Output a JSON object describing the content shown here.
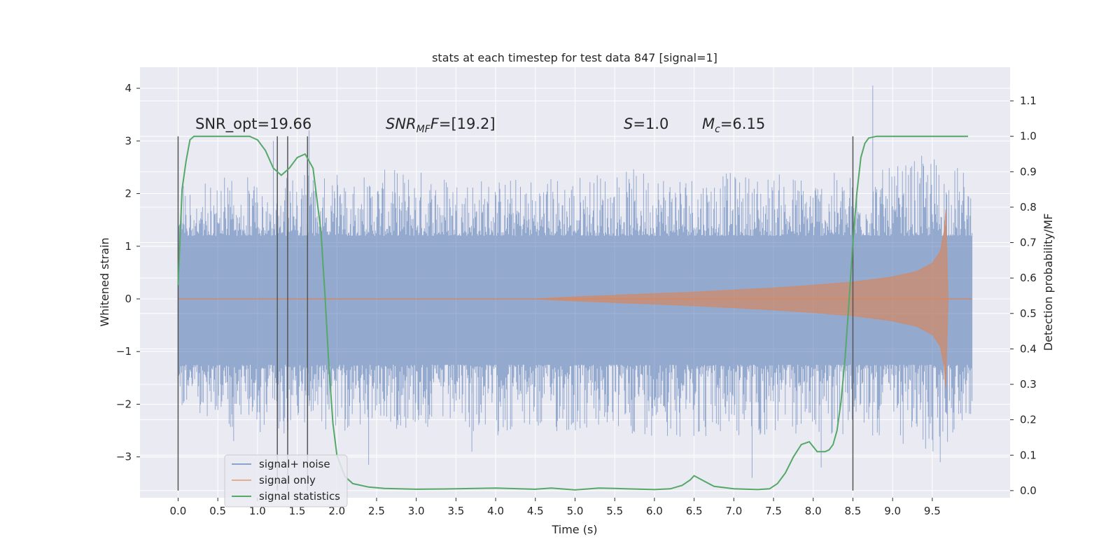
{
  "chart_data": {
    "type": "line",
    "title": "stats at each timestep for test data 847 [signal=1]",
    "xlabel": "Time (s)",
    "ylabel": "Whitened strain",
    "y2label": "Detection probability/MF",
    "xlim": [
      -0.48,
      10.48
    ],
    "ylim": [
      -3.775,
      4.4
    ],
    "y2lim": [
      -0.02,
      1.195
    ],
    "grid": true,
    "legend_position": "lower-left",
    "colors": {
      "background": "#eaeaf2",
      "grid": "#ffffff",
      "noise": "#4c72b0",
      "signal": "#dd8452",
      "stats": "#55a868",
      "vlines": "#555555",
      "text": "#262626"
    },
    "x_ticks": [
      0.0,
      0.5,
      1.0,
      1.5,
      2.0,
      2.5,
      3.0,
      3.5,
      4.0,
      4.5,
      5.0,
      5.5,
      6.0,
      6.5,
      7.0,
      7.5,
      8.0,
      8.5,
      9.0,
      9.5
    ],
    "x_tick_labels": [
      "0.0",
      "0.5",
      "1.0",
      "1.5",
      "2.0",
      "2.5",
      "3.0",
      "3.5",
      "4.0",
      "4.5",
      "5.0",
      "5.5",
      "6.0",
      "6.5",
      "7.0",
      "7.5",
      "8.0",
      "8.5",
      "9.0",
      "9.5"
    ],
    "y_ticks": [
      -3,
      -2,
      -1,
      0,
      1,
      2,
      3,
      4
    ],
    "y_tick_labels": [
      "−3",
      "−2",
      "−1",
      "0",
      "1",
      "2",
      "3",
      "4"
    ],
    "y2_ticks": [
      0.0,
      0.1,
      0.2,
      0.3,
      0.4,
      0.5,
      0.6,
      0.7,
      0.8,
      0.9,
      1.0,
      1.1
    ],
    "y2_tick_labels": [
      "0.0",
      "0.1",
      "0.2",
      "0.3",
      "0.4",
      "0.5",
      "0.6",
      "0.7",
      "0.8",
      "0.9",
      "1.0",
      "1.1"
    ],
    "annotations": {
      "snr_opt": "SNR_opt=19.66",
      "snr_mf_main": "SNR",
      "snr_mf_sub": "MF",
      "snr_mf_value": "=[19.2]",
      "s_main": "S",
      "s_value": "=1.0",
      "mc_main": "M",
      "mc_sub": "c",
      "mc_value": "=6.15"
    },
    "vertical_lines": {
      "x": [
        0.0,
        1.25,
        1.38,
        1.63,
        8.5
      ],
      "y_range_right_axis": [
        0.0,
        1.0
      ]
    },
    "series": [
      {
        "name": "signal+ noise",
        "color": "#4c72b0",
        "description": "whitened noise, amplitude range",
        "x_range": [
          0.0,
          10.0
        ],
        "envelope": {
          "x": [
            0.0,
            1.0,
            2.0,
            3.0,
            4.0,
            5.0,
            6.0,
            7.0,
            8.0,
            8.5,
            9.0,
            9.5,
            10.0
          ],
          "upper": [
            2.4,
            2.3,
            2.4,
            2.5,
            2.3,
            2.4,
            2.5,
            2.4,
            2.4,
            2.4,
            2.5,
            2.8,
            2.4
          ],
          "lower": [
            -2.2,
            -2.6,
            -2.5,
            -2.5,
            -2.6,
            -2.6,
            -2.6,
            -2.7,
            -2.6,
            -2.6,
            -2.7,
            -3.1,
            -2.2
          ]
        },
        "peaks": [
          {
            "x": 0.7,
            "y": -2.7
          },
          {
            "x": 1.2,
            "y": 3.0
          },
          {
            "x": 1.65,
            "y": 3.2
          },
          {
            "x": 2.4,
            "y": -3.15
          },
          {
            "x": 3.7,
            "y": -2.9
          },
          {
            "x": 7.23,
            "y": -3.4
          },
          {
            "x": 8.1,
            "y": -3.2
          },
          {
            "x": 8.75,
            "y": 4.05
          },
          {
            "x": 9.6,
            "y": -3.1
          }
        ]
      },
      {
        "name": "signal only",
        "color": "#dd8452",
        "description": "chirp envelope growing until merger",
        "envelope": {
          "x": [
            0.0,
            4.5,
            5.0,
            5.5,
            6.0,
            6.5,
            7.0,
            7.5,
            8.0,
            8.5,
            9.0,
            9.3,
            9.5,
            9.6,
            9.65,
            9.67,
            9.7,
            10.0
          ],
          "amp": [
            0.0,
            0.0,
            0.04,
            0.07,
            0.1,
            0.13,
            0.17,
            0.21,
            0.26,
            0.32,
            0.42,
            0.52,
            0.68,
            0.9,
            1.3,
            1.7,
            0.0,
            0.0
          ]
        }
      },
      {
        "name": "signal statistics",
        "color": "#55a868",
        "axis": "right",
        "x": [
          0.0,
          0.05,
          0.1,
          0.15,
          0.2,
          0.3,
          0.5,
          0.7,
          0.9,
          1.0,
          1.1,
          1.2,
          1.3,
          1.4,
          1.5,
          1.6,
          1.7,
          1.8,
          1.85,
          1.9,
          1.95,
          2.0,
          2.05,
          2.1,
          2.2,
          2.4,
          2.6,
          3.0,
          3.5,
          4.0,
          4.5,
          4.7,
          5.0,
          5.3,
          5.5,
          6.0,
          6.2,
          6.35,
          6.45,
          6.5,
          6.6,
          6.75,
          7.0,
          7.3,
          7.45,
          7.55,
          7.65,
          7.75,
          7.85,
          7.95,
          8.05,
          8.15,
          8.2,
          8.25,
          8.3,
          8.35,
          8.4,
          8.45,
          8.5,
          8.55,
          8.6,
          8.65,
          8.7,
          8.8,
          9.0,
          9.5,
          9.95
        ],
        "y": [
          0.58,
          0.85,
          0.93,
          0.99,
          1.0,
          1.0,
          1.0,
          1.0,
          1.0,
          0.99,
          0.96,
          0.91,
          0.89,
          0.91,
          0.94,
          0.95,
          0.91,
          0.73,
          0.55,
          0.35,
          0.19,
          0.1,
          0.07,
          0.04,
          0.02,
          0.01,
          0.006,
          0.004,
          0.005,
          0.007,
          0.004,
          0.007,
          0.002,
          0.007,
          0.006,
          0.003,
          0.005,
          0.015,
          0.03,
          0.042,
          0.03,
          0.012,
          0.005,
          0.003,
          0.005,
          0.02,
          0.05,
          0.095,
          0.13,
          0.138,
          0.11,
          0.11,
          0.115,
          0.13,
          0.17,
          0.25,
          0.37,
          0.53,
          0.7,
          0.84,
          0.94,
          0.98,
          0.995,
          1.0,
          1.0,
          1.0,
          1.0
        ]
      }
    ]
  }
}
